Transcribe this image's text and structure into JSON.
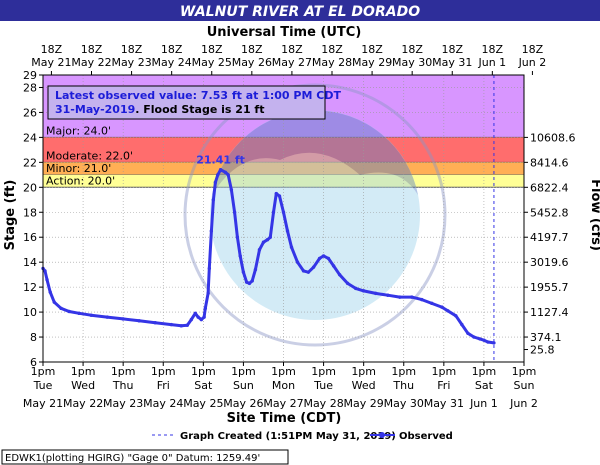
{
  "title": "WALNUT RIVER AT EL DORADO",
  "top_axis_title": "Universal Time (UTC)",
  "bottom_axis_title": "Site Time (CDT)",
  "ylabel": "Stage (ft)",
  "y2label": "Flow (cfs)",
  "info_box": {
    "line1": "Latest observed value: 7.53 ft at 1:00 PM CDT",
    "line2_date": "31-May-2019",
    "line2_rest": ". Flood Stage is 21 ft"
  },
  "footer": {
    "station": "EDWK1(plotting HGIRG) \"Gage 0\" Datum: 1259.49'",
    "graph_created": "Graph Created (1:51PM May 31, 2019)",
    "observed_label": "Observed"
  },
  "colors": {
    "title_bg": "#2e2e9a",
    "major": "#d896ff",
    "moderate": "#ff6d6d",
    "minor": "#ffaf55",
    "action": "#ffff96",
    "series": "#3535e6",
    "latest_text": "#1c1cd8"
  },
  "chart_data": {
    "type": "line",
    "ylim": [
      6,
      29
    ],
    "yticks": [
      6,
      8,
      10,
      12,
      14,
      16,
      18,
      20,
      22,
      24,
      26,
      28,
      29
    ],
    "xlim_days": [
      0,
      12
    ],
    "bottom_ticks": [
      {
        "time": "1pm",
        "day": "Tue",
        "date": "May 21"
      },
      {
        "time": "1pm",
        "day": "Wed",
        "date": "May 22"
      },
      {
        "time": "1pm",
        "day": "Thu",
        "date": "May 23"
      },
      {
        "time": "1pm",
        "day": "Fri",
        "date": "May 24"
      },
      {
        "time": "1pm",
        "day": "Sat",
        "date": "May 25"
      },
      {
        "time": "1pm",
        "day": "Sun",
        "date": "May 26"
      },
      {
        "time": "1pm",
        "day": "Mon",
        "date": "May 27"
      },
      {
        "time": "1pm",
        "day": "Tue",
        "date": "May 28"
      },
      {
        "time": "1pm",
        "day": "Wed",
        "date": "May 29"
      },
      {
        "time": "1pm",
        "day": "Thu",
        "date": "May 30"
      },
      {
        "time": "1pm",
        "day": "Fri",
        "date": "May 31"
      },
      {
        "time": "1pm",
        "day": "Sat",
        "date": "Jun 1"
      },
      {
        "time": "1pm",
        "day": "Sun",
        "date": "Jun 2"
      }
    ],
    "top_ticks": [
      {
        "time": "18Z",
        "date": "May 21"
      },
      {
        "time": "18Z",
        "date": "May 22"
      },
      {
        "time": "18Z",
        "date": "May 23"
      },
      {
        "time": "18Z",
        "date": "May 24"
      },
      {
        "time": "18Z",
        "date": "May 25"
      },
      {
        "time": "18Z",
        "date": "May 26"
      },
      {
        "time": "18Z",
        "date": "May 27"
      },
      {
        "time": "18Z",
        "date": "May 28"
      },
      {
        "time": "18Z",
        "date": "May 29"
      },
      {
        "time": "18Z",
        "date": "May 30"
      },
      {
        "time": "18Z",
        "date": "May 31"
      },
      {
        "time": "18Z",
        "date": "Jun 1"
      },
      {
        "time": "18Z",
        "date": "Jun 2"
      }
    ],
    "flow_ticks": [
      {
        "stage": 7,
        "label": "25.8"
      },
      {
        "stage": 8,
        "label": "374.1"
      },
      {
        "stage": 10,
        "label": "1127.4"
      },
      {
        "stage": 12,
        "label": "1955.7"
      },
      {
        "stage": 14,
        "label": "3019.6"
      },
      {
        "stage": 16,
        "label": "4197.7"
      },
      {
        "stage": 18,
        "label": "5452.8"
      },
      {
        "stage": 20,
        "label": "6822.4"
      },
      {
        "stage": 22,
        "label": "8414.6"
      },
      {
        "stage": 24,
        "label": "10608.6"
      }
    ],
    "flood_categories": [
      {
        "name": "Major: 24.0'",
        "from": 24,
        "to": 29,
        "color": "#d896ff"
      },
      {
        "name": "Moderate: 22.0'",
        "from": 22,
        "to": 24,
        "color": "#ff6d6d"
      },
      {
        "name": "Minor: 21.0'",
        "from": 21,
        "to": 22,
        "color": "#ffaf55"
      },
      {
        "name": "Action: 20.0'",
        "from": 20,
        "to": 21,
        "color": "#ffff96"
      }
    ],
    "peak_label": "21.41 ft",
    "series": [
      {
        "name": "Observed",
        "points": [
          [
            0.0,
            13.5
          ],
          [
            0.05,
            13.3
          ],
          [
            0.1,
            12.6
          ],
          [
            0.18,
            11.6
          ],
          [
            0.28,
            10.8
          ],
          [
            0.45,
            10.3
          ],
          [
            0.65,
            10.05
          ],
          [
            0.9,
            9.9
          ],
          [
            1.2,
            9.75
          ],
          [
            1.6,
            9.6
          ],
          [
            2.0,
            9.45
          ],
          [
            2.4,
            9.3
          ],
          [
            2.8,
            9.15
          ],
          [
            3.2,
            9.0
          ],
          [
            3.45,
            8.9
          ],
          [
            3.6,
            8.95
          ],
          [
            3.7,
            9.4
          ],
          [
            3.8,
            9.9
          ],
          [
            3.87,
            9.6
          ],
          [
            3.95,
            9.4
          ],
          [
            4.02,
            9.6
          ],
          [
            4.05,
            10.3
          ],
          [
            4.12,
            11.5
          ],
          [
            4.15,
            13.5
          ],
          [
            4.2,
            16.5
          ],
          [
            4.25,
            19.0
          ],
          [
            4.3,
            20.4
          ],
          [
            4.36,
            21.0
          ],
          [
            4.43,
            21.41
          ],
          [
            4.55,
            21.2
          ],
          [
            4.62,
            21.0
          ],
          [
            4.7,
            19.8
          ],
          [
            4.78,
            18.0
          ],
          [
            4.85,
            16.0
          ],
          [
            4.92,
            14.5
          ],
          [
            5.0,
            13.2
          ],
          [
            5.08,
            12.4
          ],
          [
            5.15,
            12.3
          ],
          [
            5.22,
            12.5
          ],
          [
            5.3,
            13.4
          ],
          [
            5.4,
            15.0
          ],
          [
            5.5,
            15.6
          ],
          [
            5.6,
            15.8
          ],
          [
            5.67,
            16.0
          ],
          [
            5.75,
            18.0
          ],
          [
            5.82,
            19.5
          ],
          [
            5.9,
            19.3
          ],
          [
            6.0,
            18.0
          ],
          [
            6.1,
            16.5
          ],
          [
            6.2,
            15.2
          ],
          [
            6.35,
            14.0
          ],
          [
            6.5,
            13.3
          ],
          [
            6.62,
            13.2
          ],
          [
            6.75,
            13.6
          ],
          [
            6.9,
            14.3
          ],
          [
            7.0,
            14.5
          ],
          [
            7.12,
            14.3
          ],
          [
            7.25,
            13.7
          ],
          [
            7.4,
            13.0
          ],
          [
            7.6,
            12.3
          ],
          [
            7.8,
            11.9
          ],
          [
            8.0,
            11.7
          ],
          [
            8.3,
            11.5
          ],
          [
            8.6,
            11.35
          ],
          [
            8.9,
            11.2
          ],
          [
            9.2,
            11.2
          ],
          [
            9.45,
            11.0
          ],
          [
            9.7,
            10.7
          ],
          [
            9.95,
            10.4
          ],
          [
            10.1,
            10.1
          ],
          [
            10.3,
            9.7
          ],
          [
            10.45,
            9.0
          ],
          [
            10.6,
            8.3
          ],
          [
            10.75,
            8.0
          ],
          [
            10.9,
            7.85
          ],
          [
            11.0,
            7.75
          ],
          [
            11.1,
            7.6
          ],
          [
            11.25,
            7.53
          ]
        ]
      }
    ]
  }
}
